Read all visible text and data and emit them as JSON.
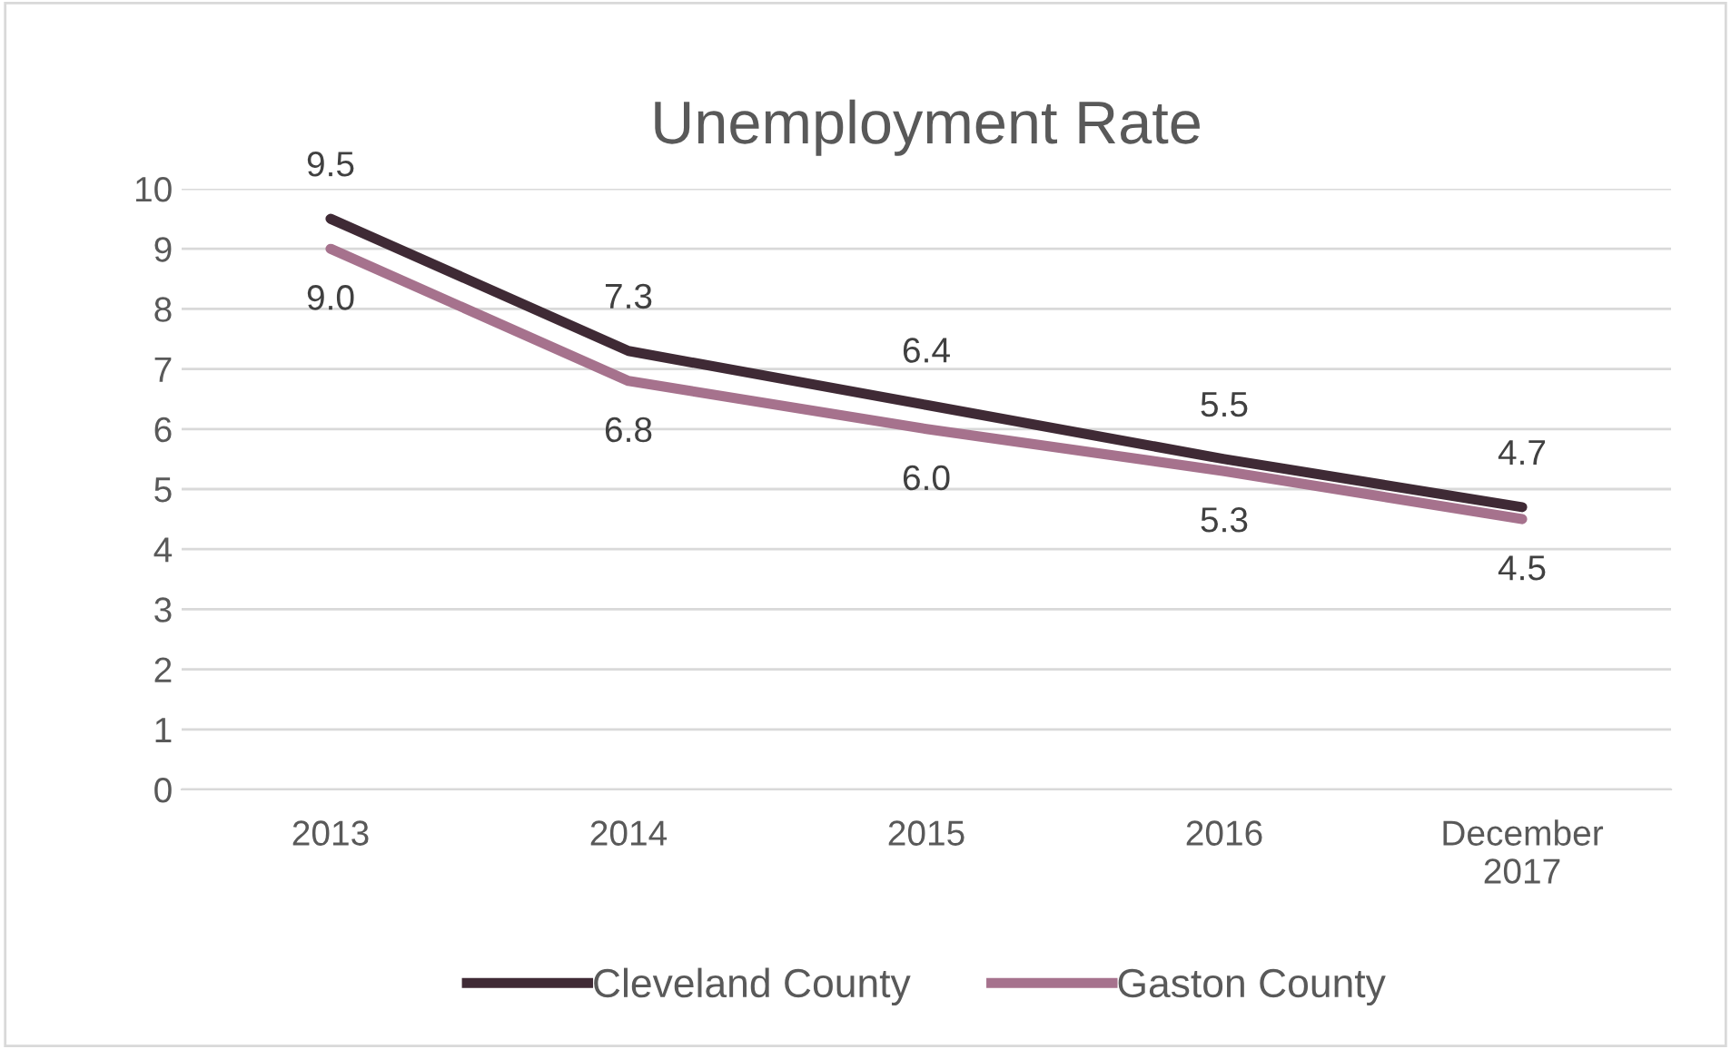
{
  "chart_data": {
    "type": "line",
    "title": "Unemployment Rate",
    "categories": [
      "2013",
      "2014",
      "2015",
      "2016",
      "December\n2017"
    ],
    "series": [
      {
        "name": "Cleveland County",
        "color": "#3f2a35",
        "values": [
          9.5,
          7.3,
          6.4,
          5.5,
          4.7
        ],
        "value_labels": [
          "9.5",
          "7.3",
          "6.4",
          "5.5",
          "4.7"
        ]
      },
      {
        "name": "Gaston County",
        "color": "#a6728d",
        "values": [
          9.0,
          6.8,
          6.0,
          5.3,
          4.5
        ],
        "value_labels": [
          "9.0",
          "6.8",
          "6.0",
          "5.3",
          "4.5"
        ]
      }
    ],
    "ylim": [
      0,
      10
    ],
    "yticks": [
      0,
      1,
      2,
      3,
      4,
      5,
      6,
      7,
      8,
      9,
      10
    ],
    "grid": "y",
    "legend": "bottom",
    "marker": "none",
    "line_style": "solid"
  }
}
